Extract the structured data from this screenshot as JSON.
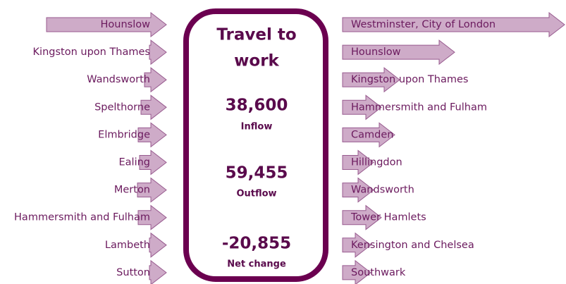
{
  "center": {
    "title_line1": "Travel to",
    "title_line2": "work",
    "stats": [
      {
        "value": "38,600",
        "label": "Inflow"
      },
      {
        "value": "59,455",
        "label": "Outflow"
      },
      {
        "value": "-20,855",
        "label": "Net change"
      }
    ]
  },
  "left": [
    "Hounslow",
    "Kingston upon Thames",
    "Wandsworth",
    "Spelthorne",
    "Elmbridge",
    "Ealing",
    "Merton",
    "Hammersmith and Fulham",
    "Lambeth",
    "Sutton"
  ],
  "right": [
    "Westminster, City of London",
    "Hounslow",
    "Kingston upon Thames",
    "Hammersmith and Fulham",
    "Camden",
    "Hillingdon",
    "Wandsworth",
    "Tower Hamlets",
    "Kensington and Chelsea",
    "Southwark"
  ]
}
